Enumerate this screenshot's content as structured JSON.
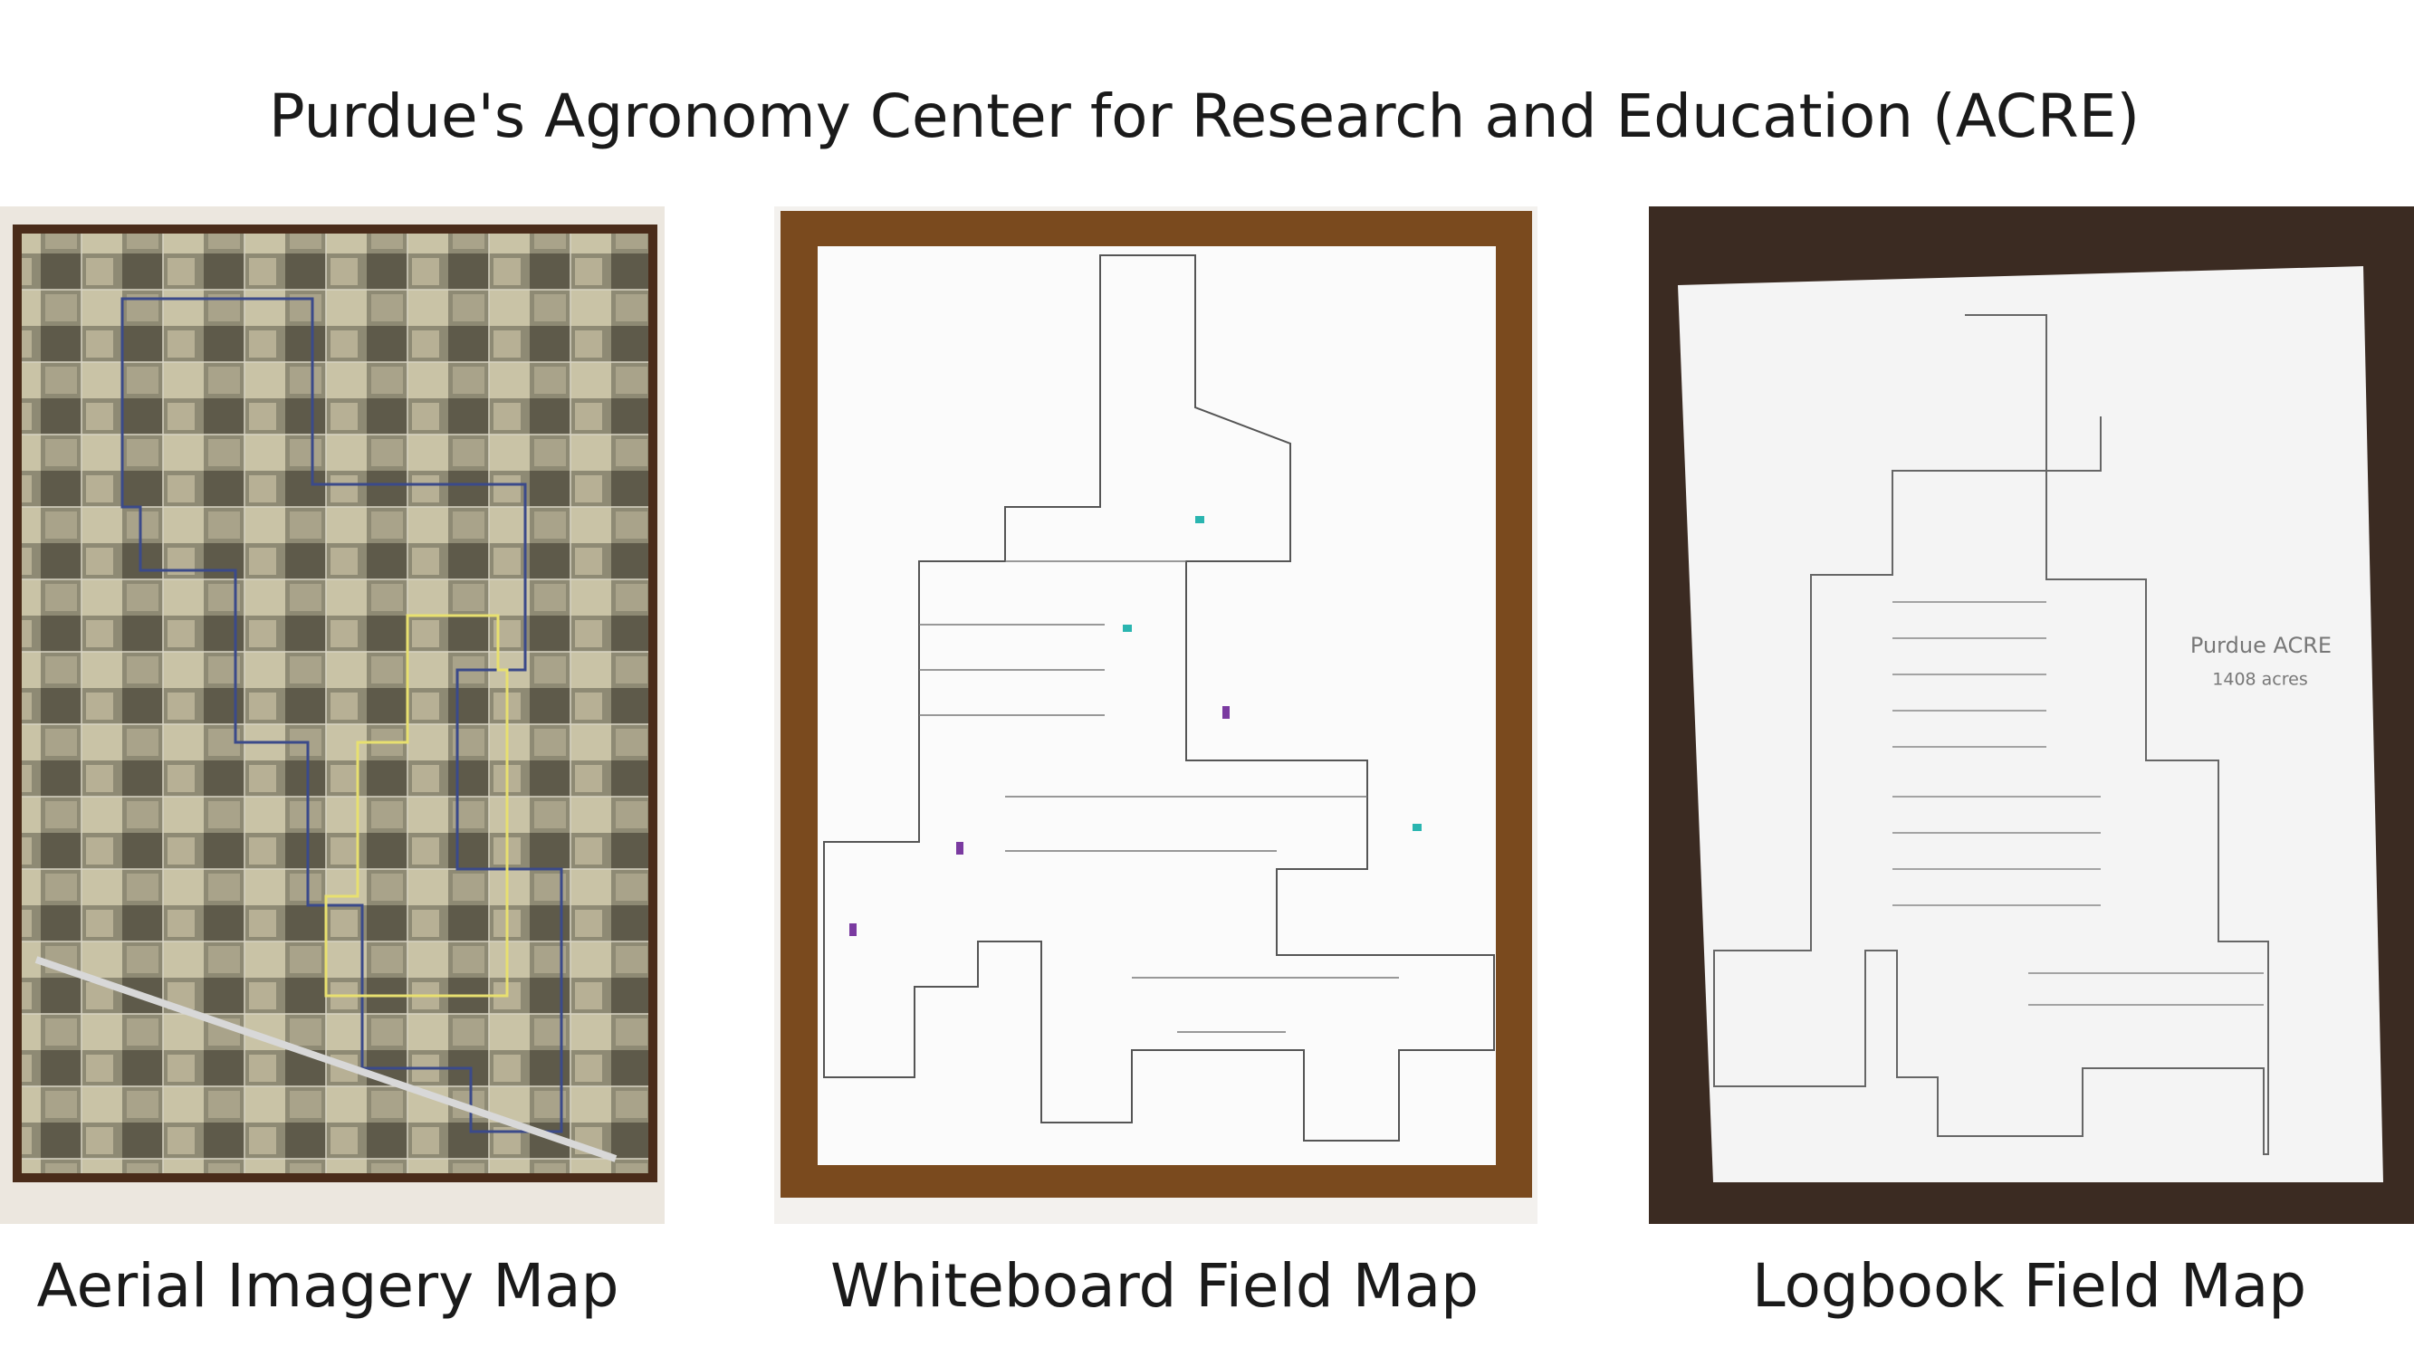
{
  "title": "Purdue's Agronomy Center for Research and Education (ACRE)",
  "panels": [
    {
      "caption": "Aerial Imagery Map"
    },
    {
      "caption": "Whiteboard Field Map"
    },
    {
      "caption": "Logbook Field Map",
      "labels": [
        "Purdue ACRE",
        "1408 acres"
      ]
    }
  ]
}
